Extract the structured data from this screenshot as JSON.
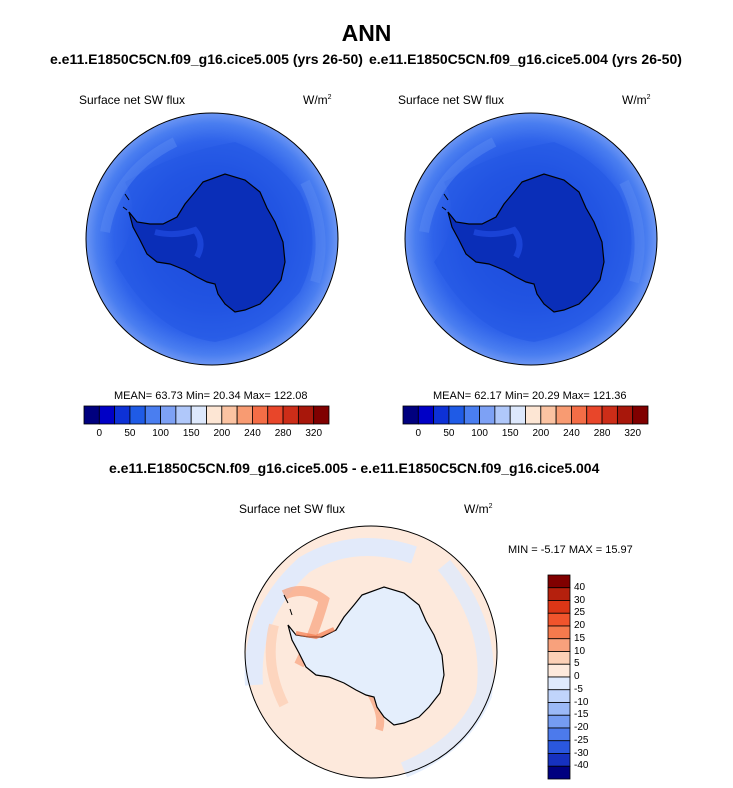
{
  "title": "ANN",
  "top_left": {
    "header": "e.e11.E1850C5CN.f09_g16.cice5.005 (yrs 26-50)",
    "variable": "Surface net SW flux",
    "units_base": "W/m",
    "units_exp": "2",
    "stats": "MEAN=  63.73  Min=  20.34  Max= 122.08"
  },
  "top_right": {
    "header": "e.e11.E1850C5CN.f09_g16.cice5.004 (yrs 26-50)",
    "variable": "Surface net SW flux",
    "units_base": "W/m",
    "units_exp": "2",
    "stats": "MEAN=  62.17  Min=  20.29  Max= 121.36"
  },
  "bottom": {
    "header": "e.e11.E1850C5CN.f09_g16.cice5.005 - e.e11.E1850C5CN.f09_g16.cice5.004",
    "variable": "Surface net SW flux",
    "units_base": "W/m",
    "units_exp": "2",
    "stats": "MIN =  -5.17 MAX =  15.97"
  },
  "abs_colorbar": {
    "colors": [
      "#00007f",
      "#0000c6",
      "#0d31d6",
      "#1f5be6",
      "#4a7ef0",
      "#7da1f5",
      "#b0c8fa",
      "#dde8fc",
      "#fde6d4",
      "#fbc3a2",
      "#f89b72",
      "#f46d46",
      "#e8462a",
      "#cc2d18",
      "#a8170b",
      "#800000"
    ],
    "ticks": [
      "0",
      "50",
      "100",
      "150",
      "200",
      "240",
      "280",
      "320"
    ]
  },
  "diff_colorbar": {
    "colors": [
      "#800000",
      "#b5200d",
      "#dc3616",
      "#f1542c",
      "#f57a4d",
      "#f8a17c",
      "#fcd0b6",
      "#fde9dc",
      "#dfeafd",
      "#c0d4fb",
      "#9bb9f7",
      "#759cf2",
      "#4c7aec",
      "#2a57de",
      "#1631c0",
      "#000080"
    ],
    "ticks": [
      "40",
      "30",
      "25",
      "20",
      "15",
      "10",
      "5",
      "0",
      "-5",
      "-10",
      "-15",
      "-20",
      "-25",
      "-30",
      "-40"
    ]
  }
}
